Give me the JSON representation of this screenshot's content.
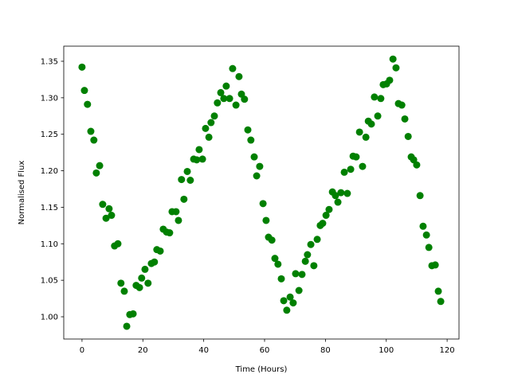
{
  "chart_data": {
    "type": "scatter",
    "xlabel": "Time (Hours)",
    "ylabel": "Normalised Flux",
    "color": "#008000",
    "x": [
      0,
      0.8,
      1.8,
      2.9,
      3.9,
      4.7,
      5.8,
      6.8,
      7.9,
      8.9,
      9.7,
      10.7,
      11.8,
      12.8,
      13.9,
      14.7,
      15.7,
      16.8,
      17.8,
      18.9,
      19.6,
      20.7,
      21.7,
      22.8,
      23.8,
      24.6,
      25.7,
      26.7,
      27.8,
      28.8,
      29.6,
      30.9,
      31.7,
      32.7,
      33.5,
      34.6,
      35.6,
      36.7,
      37.7,
      38.5,
      39.6,
      40.6,
      41.7,
      42.4,
      43.5,
      44.5,
      45.6,
      46.6,
      47.4,
      48.5,
      49.5,
      50.6,
      51.6,
      52.4,
      53.4,
      54.5,
      55.5,
      56.6,
      57.4,
      58.4,
      59.5,
      60.5,
      61.3,
      62.4,
      63.4,
      64.4,
      65.5,
      66.3,
      67.3,
      68.4,
      69.4,
      70.2,
      71.3,
      72.3,
      73.4,
      74.1,
      75.2,
      76.2,
      77.3,
      78.3,
      79.1,
      80.2,
      81.2,
      82.3,
      83.3,
      84.1,
      85.1,
      86.2,
      87.2,
      88.3,
      89.1,
      90.1,
      91.2,
      92.2,
      93.3,
      94.1,
      95.1,
      96.1,
      97.2,
      98.2,
      99.0,
      100.1,
      101.1,
      102.2,
      103.2,
      104.0,
      105.1,
      106.1,
      107.2,
      108.2,
      109.0,
      110.0,
      111.1,
      112.1,
      113.2,
      114.0,
      115.0,
      116.1,
      117.1,
      117.9
    ],
    "values": [
      1.342,
      1.31,
      1.291,
      1.254,
      1.242,
      1.197,
      1.207,
      1.154,
      1.135,
      1.148,
      1.139,
      1.097,
      1.1,
      1.046,
      1.035,
      0.987,
      1.003,
      1.004,
      1.043,
      1.04,
      1.053,
      1.065,
      1.046,
      1.073,
      1.075,
      1.092,
      1.09,
      1.12,
      1.116,
      1.115,
      1.144,
      1.144,
      1.132,
      1.188,
      1.161,
      1.199,
      1.187,
      1.216,
      1.215,
      1.229,
      1.216,
      1.258,
      1.246,
      1.266,
      1.275,
      1.293,
      1.307,
      1.299,
      1.316,
      1.299,
      1.34,
      1.29,
      1.329,
      1.305,
      1.298,
      1.256,
      1.242,
      1.219,
      1.193,
      1.206,
      1.155,
      1.132,
      1.109,
      1.105,
      1.08,
      1.072,
      1.052,
      1.022,
      1.009,
      1.027,
      1.019,
      1.059,
      1.036,
      1.058,
      1.076,
      1.085,
      1.099,
      1.07,
      1.106,
      1.125,
      1.128,
      1.139,
      1.147,
      1.171,
      1.166,
      1.157,
      1.17,
      1.198,
      1.169,
      1.202,
      1.22,
      1.219,
      1.253,
      1.206,
      1.246,
      1.268,
      1.264,
      1.301,
      1.275,
      1.299,
      1.318,
      1.319,
      1.324,
      1.353,
      1.341,
      1.292,
      1.29,
      1.271,
      1.247,
      1.219,
      1.215,
      1.208,
      1.166,
      1.124,
      1.112,
      1.095,
      1.07,
      1.071,
      1.035,
      1.021
    ],
    "xlim": [
      -6,
      123.9
    ],
    "xticks": [
      0,
      20,
      40,
      60,
      80,
      100,
      120
    ],
    "ylim": [
      0.9695,
      1.3707
    ],
    "yticks": [
      {
        "value": 1.0,
        "label": "1.00"
      },
      1.05,
      {
        "value": 1.1,
        "label": "1.10"
      },
      1.15,
      {
        "value": 1.2,
        "label": "1.20"
      },
      1.25,
      {
        "value": 1.3,
        "label": "1.30"
      },
      1.35
    ]
  }
}
